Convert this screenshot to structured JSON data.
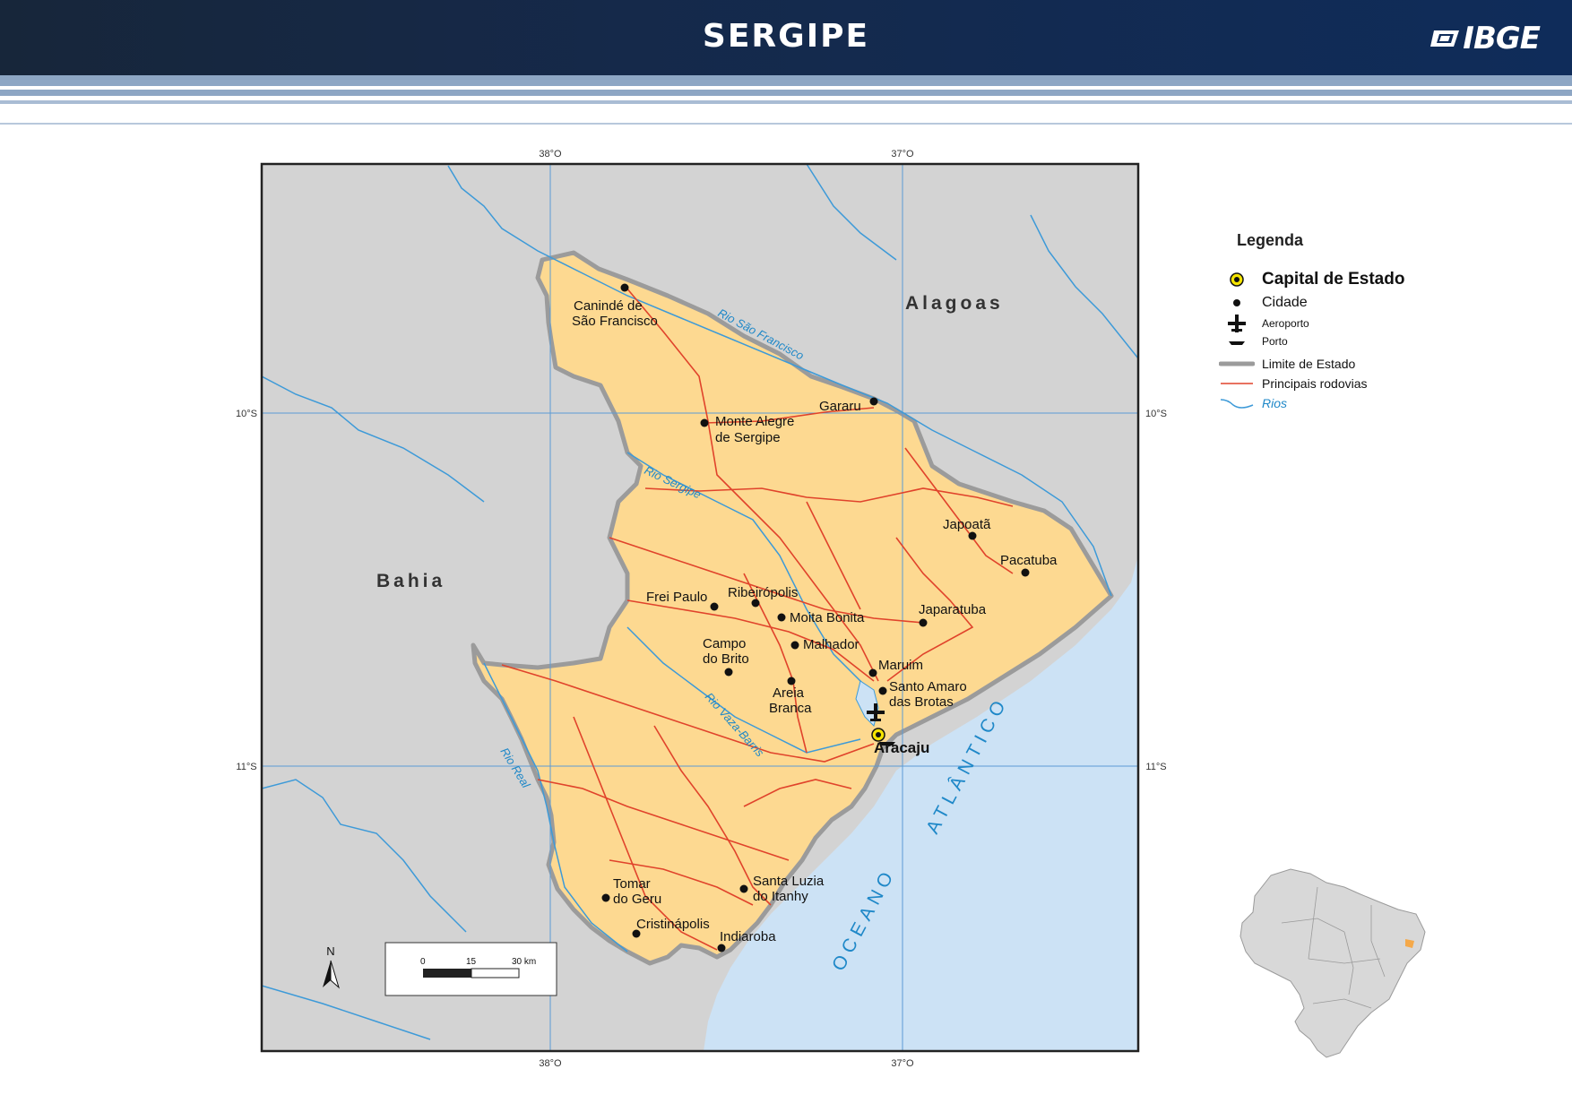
{
  "header": {
    "title": "SERGIPE",
    "logo_text": "IBGE",
    "background": "#15294a"
  },
  "map": {
    "grid_labels": {
      "top_west": "38°O",
      "top_east": "37°O",
      "bottom_west": "38°O",
      "bottom_east": "37°O",
      "left_north": "10°S",
      "left_south": "11°S",
      "right_north": "10°S",
      "right_south": "11°S"
    },
    "regions": [
      {
        "name": "Alagoas"
      },
      {
        "name": "Bahia"
      }
    ],
    "ocean_label_1": "OCEANO",
    "ocean_label_2": "ATLÂNTICO",
    "rivers": [
      {
        "name": "Rio São Francisco"
      },
      {
        "name": "Rio Sergipe"
      },
      {
        "name": "Rio Vaza-Barris"
      },
      {
        "name": "Rio Real"
      }
    ],
    "cities": [
      {
        "name": "Canindé de",
        "name2": "São Francisco"
      },
      {
        "name": "Gararu"
      },
      {
        "name": "Monte Alegre",
        "name2": "de Sergipe"
      },
      {
        "name": "Japoatã"
      },
      {
        "name": "Pacatuba"
      },
      {
        "name": "Frei Paulo"
      },
      {
        "name": "Ribeirópolis"
      },
      {
        "name": "Moita Bonita"
      },
      {
        "name": "Japaratuba"
      },
      {
        "name": "Campo",
        "name2": "do Brito"
      },
      {
        "name": "Malhador"
      },
      {
        "name": "Maruim"
      },
      {
        "name": "Santo Amaro",
        "name2": "das Brotas"
      },
      {
        "name": "Areia",
        "name2": "Branca"
      },
      {
        "name": "Tomar",
        "name2": "do Geru"
      },
      {
        "name": "Santa Luzia",
        "name2": "do Itanhy"
      },
      {
        "name": "Cristinápolis"
      },
      {
        "name": "Indiaroba"
      }
    ],
    "capital": {
      "name": "Aracaju"
    },
    "north_arrow_label": "N",
    "scale_bar": {
      "ticks": [
        "0",
        "15",
        "30 km"
      ]
    },
    "colors": {
      "state_fill": "#fdd991",
      "neighbor_fill": "#d3d3d3",
      "ocean": "#cce2f5",
      "road": "#e0432b",
      "river": "#3d9ad8",
      "border": "#9b9b9b",
      "grid": "#5b9bd5"
    }
  },
  "legend": {
    "title": "Legenda",
    "items": [
      {
        "label": "Capital de Estado",
        "icon": "capital-icon"
      },
      {
        "label": "Cidade",
        "icon": "city-dot-icon"
      },
      {
        "label": "Aeroporto",
        "icon": "airport-icon"
      },
      {
        "label": "Porto",
        "icon": "port-icon"
      },
      {
        "label": "Limite de Estado",
        "icon": "state-boundary-icon"
      },
      {
        "label": "Principais rodovias",
        "icon": "highway-icon"
      },
      {
        "label": "Rios",
        "icon": "river-icon"
      }
    ]
  }
}
